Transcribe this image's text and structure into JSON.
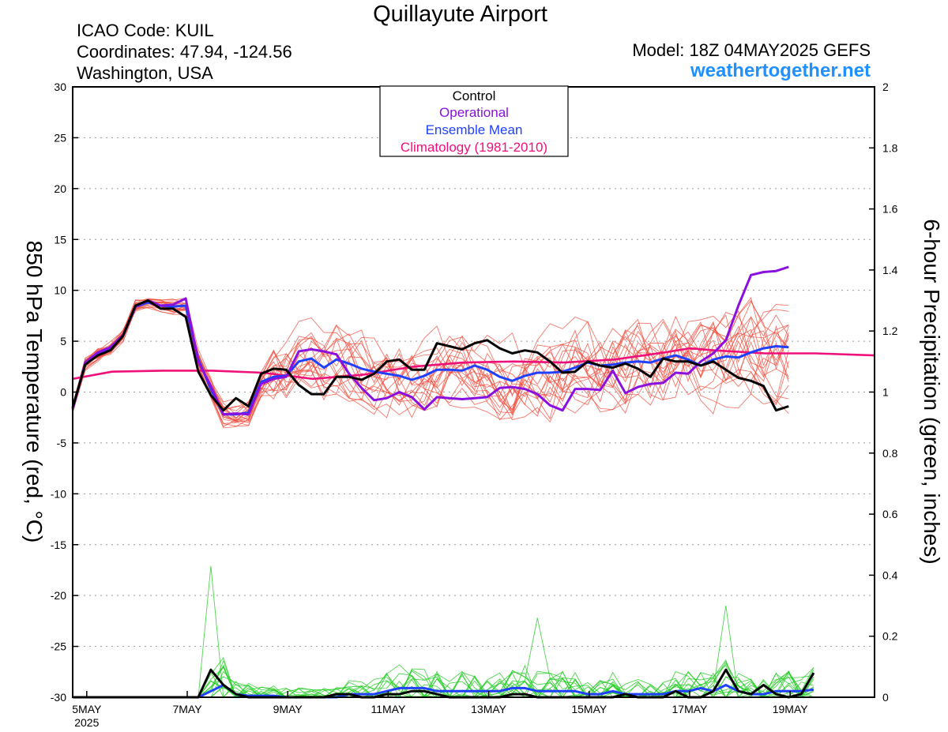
{
  "header": {
    "title": "Quillayute Airport",
    "icao": "ICAO Code: KUIL",
    "coords": "Coordinates: 47.94, -124.56",
    "location": "Washington, USA",
    "model": "Model: 18Z 04MAY2025 GEFS",
    "site": "weathertogether.net"
  },
  "colors": {
    "control": "#000000",
    "operational": "#8a10e0",
    "ensemble_mean": "#2040ff",
    "climatology": "#f0107a",
    "members": "#f04a3a",
    "precip": "#22cc22",
    "site": "#1e90ff"
  },
  "chart_data": {
    "type": "line",
    "ylabel": "850 hPa Temperature (red, °C)",
    "y2label": "6-hour Precipitation (green, inches)",
    "ylim": [
      -30,
      30
    ],
    "y2lim": [
      0,
      2
    ],
    "yticks": [
      "30",
      "25",
      "20",
      "15",
      "10",
      "5",
      "0",
      "-5",
      "-10",
      "-15",
      "-20",
      "-25",
      "-30"
    ],
    "y2ticks": [
      "2",
      "1.8",
      "1.6",
      "1.4",
      "1.2",
      "1",
      "0.8",
      "0.6",
      "0.4",
      "0.2",
      "0"
    ],
    "xticks": [
      {
        "day": 0,
        "label": "5MAY",
        "sub": "2025"
      },
      {
        "day": 2,
        "label": "7MAY"
      },
      {
        "day": 4,
        "label": "9MAY"
      },
      {
        "day": 6,
        "label": "11MAY"
      },
      {
        "day": 8,
        "label": "13MAY"
      },
      {
        "day": 10,
        "label": "15MAY"
      },
      {
        "day": 12,
        "label": "17MAY"
      },
      {
        "day": 14,
        "label": "19MAY"
      }
    ],
    "x_range_days": [
      -0.28,
      15.68
    ],
    "legend": [
      "Control",
      "Operational",
      "Ensemble Mean",
      "Climatology (1981-2010)"
    ],
    "legend_position": "top-center",
    "grid": true,
    "series": [
      {
        "name": "Control",
        "role": "control",
        "axis": "temp",
        "values": [
          -1.5,
          2.7,
          3.6,
          4.1,
          5.5,
          8.5,
          9,
          8.2,
          8.2,
          7.4,
          2,
          -0.3,
          -1.8,
          -0.6,
          -1.4,
          1.8,
          2.3,
          2.2,
          0.7,
          -0.2,
          -0.2,
          1.5,
          1.5,
          1.2,
          1.8,
          3,
          3.2,
          2.2,
          2.2,
          4.8,
          4.5,
          4.2,
          4.8,
          5.1,
          4.3,
          3.8,
          4.1,
          3.9,
          3,
          1.9,
          2,
          3,
          2.6,
          2.4,
          2.8,
          2.3,
          1.5,
          3.3,
          3,
          3,
          2.6,
          3,
          2.2,
          1.4,
          1.1,
          0.6,
          -1.8,
          -1.4
        ]
      },
      {
        "name": "Operational",
        "role": "operational",
        "axis": "temp",
        "values": [
          -1.7,
          2.9,
          3.9,
          4.4,
          5.6,
          8.4,
          9,
          8.5,
          8.6,
          9.2,
          3,
          0.6,
          -2.2,
          -2.1,
          -2.2,
          0.8,
          1.3,
          1.5,
          4,
          4.2,
          4,
          3.7,
          1.8,
          0.4,
          -0.8,
          -0.6,
          0,
          -0.5,
          -1.7,
          -0.5,
          -0.6,
          -0.7,
          -0.6,
          -0.5,
          0.4,
          0.5,
          0.3,
          -0.2,
          -1.3,
          -1.8,
          0.3,
          0.3,
          0.2,
          2.1,
          -0.1,
          0.5,
          0.8,
          0.9,
          1.9,
          1.8,
          3,
          3.8,
          5.1,
          8.5,
          11.5,
          11.8,
          11.9,
          12.3
        ]
      },
      {
        "name": "Ensemble Mean",
        "role": "ensemble_mean",
        "axis": "temp",
        "values": [
          -1.6,
          2.8,
          3.7,
          4.3,
          5.5,
          8.4,
          8.8,
          8.5,
          8.4,
          8.5,
          3.2,
          0.3,
          -2.2,
          -2.2,
          -2,
          1,
          1.5,
          1.6,
          3,
          3.3,
          2.4,
          3.2,
          2.8,
          2.3,
          2,
          1.8,
          1.6,
          1.2,
          1.6,
          2.2,
          2.2,
          2.1,
          2.6,
          2.2,
          1.5,
          1.1,
          1.6,
          1.9,
          1.9,
          2,
          2.4,
          2.9,
          2.6,
          2.7,
          2.9,
          3,
          2.9,
          3.3,
          3.6,
          3.2,
          2.6,
          3.2,
          3.5,
          3.4,
          3.9,
          4.3,
          4.5,
          4.4
        ]
      },
      {
        "name": "Climatology (1981-2010)",
        "role": "climatology",
        "axis": "temp",
        "x_days": [
          -0.28,
          0.5,
          1.5,
          2.5,
          3.5,
          4.5,
          5.5,
          6.5,
          7.5,
          8.5,
          9.5,
          10.5,
          11.5,
          12,
          12.5,
          13.5,
          14.5,
          15.68
        ],
        "values": [
          1.3,
          2.0,
          2.1,
          2.1,
          1.9,
          1.3,
          1.7,
          2.5,
          2.9,
          3.0,
          2.9,
          3.2,
          3.9,
          4.3,
          4.1,
          3.8,
          3.8,
          3.6
        ]
      },
      {
        "name": "Control",
        "role": "control_precip",
        "axis": "precip",
        "values": [
          0,
          0,
          0,
          0,
          0,
          0,
          0,
          0,
          0,
          0,
          0,
          0.09,
          0.04,
          0.01,
          0,
          0,
          0,
          0,
          0,
          0,
          0,
          0.01,
          0.01,
          0,
          0,
          0.01,
          0.01,
          0.02,
          0.02,
          0.01,
          0,
          0,
          0,
          0,
          0,
          0.01,
          0.01,
          0,
          0,
          0,
          0,
          0,
          0,
          0,
          0.01,
          0,
          0,
          0,
          0.02,
          0,
          0,
          0.02,
          0.09,
          0.02,
          0.01,
          0.04,
          0.01,
          0,
          0.01,
          0.08
        ]
      },
      {
        "name": "Ensemble Mean",
        "role": "ensemble_mean_precip",
        "axis": "precip",
        "values": [
          0,
          0,
          0,
          0,
          0,
          0,
          0,
          0,
          0,
          0,
          0,
          0.02,
          0.04,
          0.01,
          0.005,
          0.005,
          0.005,
          0,
          0,
          0,
          0,
          0,
          0.01,
          0.01,
          0.01,
          0.02,
          0.03,
          0.03,
          0.03,
          0.02,
          0.02,
          0.02,
          0.02,
          0.02,
          0.02,
          0.03,
          0.03,
          0.02,
          0.02,
          0.02,
          0.02,
          0.01,
          0.01,
          0.02,
          0.01,
          0.01,
          0.01,
          0.01,
          0.02,
          0.02,
          0.03,
          0.02,
          0.04,
          0.02,
          0.01,
          0.01,
          0.02,
          0.02,
          0.02,
          0.025
        ]
      }
    ],
    "member_style": "thin red lines (20 members)",
    "precip_member_style": "thin green lines"
  }
}
